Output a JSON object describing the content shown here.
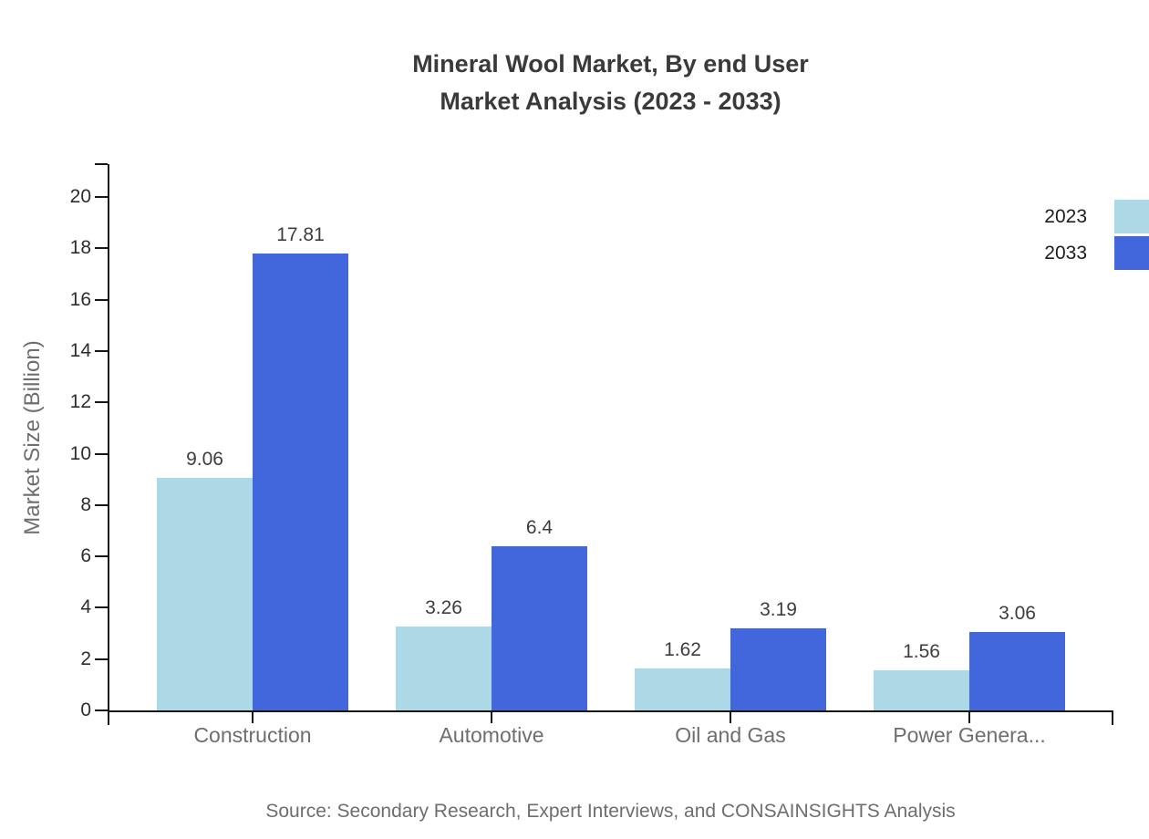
{
  "title": {
    "line1": "Mineral Wool Market, By end User",
    "line2": "Market Analysis (2023 - 2033)"
  },
  "source": "Source: Secondary Research, Expert Interviews, and CONSAINSIGHTS Analysis",
  "y_axis": {
    "label": "Market Size (Billion)"
  },
  "chart_data": {
    "type": "bar",
    "title": "Mineral Wool Market, By end User Market Analysis (2023 - 2033)",
    "xlabel": "",
    "ylabel": "Market Size (Billion)",
    "categories": [
      "Construction",
      "Automotive",
      "Oil and Gas",
      "Power Genera..."
    ],
    "series": [
      {
        "name": "2023",
        "color": "#add8e6",
        "values": [
          9.06,
          3.26,
          1.62,
          1.56
        ]
      },
      {
        "name": "2033",
        "color": "#4266db",
        "values": [
          17.81,
          6.4,
          3.19,
          3.06
        ]
      }
    ],
    "ylim": [
      0,
      21.3
    ],
    "yticks": [
      0,
      2,
      4,
      6,
      8,
      10,
      12,
      14,
      16,
      18,
      20
    ],
    "grid": false,
    "legend_position": "top-right",
    "value_labels": true
  },
  "colors": {
    "series_2023": "#add8e6",
    "series_2033": "#4266db",
    "axis": "#161616",
    "title_text": "#3a3a3a",
    "tick_text": "#2d2d2d",
    "category_text": "#6e6e6e",
    "muted_text": "#6e6e6e",
    "background": "#ffffff"
  }
}
